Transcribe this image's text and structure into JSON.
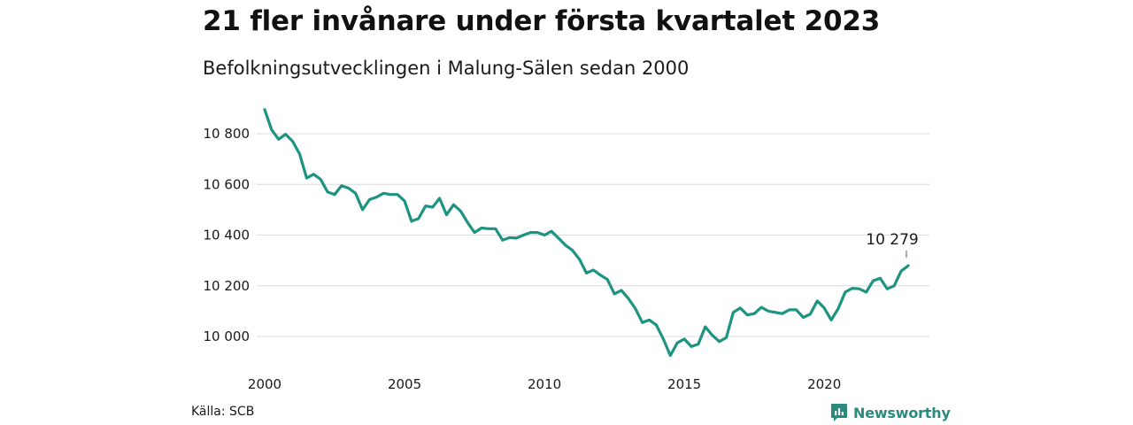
{
  "chart_data": {
    "type": "line",
    "title": "21 fler invånare under första kvartalet 2023",
    "subtitle": "Befolkningsutvecklingen i Malung-Sälen sedan 2000",
    "xlabel": "",
    "ylabel": "",
    "x_ticks": [
      2000,
      2005,
      2010,
      2015,
      2020
    ],
    "y_ticks": [
      10000,
      10200,
      10400,
      10600,
      10800
    ],
    "y_tick_labels": [
      "10 000",
      "10 200",
      "10 400",
      "10 600",
      "10 800"
    ],
    "x_tick_labels": [
      "2000",
      "2005",
      "2010",
      "2015",
      "2020"
    ],
    "xlim": [
      2000,
      2023.25
    ],
    "ylim": [
      9920,
      10920
    ],
    "grid": "horizontal",
    "line_color": "#1e9382",
    "last_value_label": "10 279",
    "series": [
      {
        "x": [
          2000.0,
          2000.25,
          2000.5,
          2000.75,
          2001.0,
          2001.25,
          2001.5,
          2001.75,
          2002.0,
          2002.25,
          2002.5,
          2002.75,
          2003.0,
          2003.25,
          2003.5,
          2003.75,
          2004.0,
          2004.25,
          2004.5,
          2004.75,
          2005.0,
          2005.25,
          2005.5,
          2005.75,
          2006.0,
          2006.25,
          2006.5,
          2006.75,
          2007.0,
          2007.25,
          2007.5,
          2007.75,
          2008.0,
          2008.25,
          2008.5,
          2008.75,
          2009.0,
          2009.25,
          2009.5,
          2009.75,
          2010.0,
          2010.25,
          2010.5,
          2010.75,
          2011.0,
          2011.25,
          2011.5,
          2011.75,
          2012.0,
          2012.25,
          2012.5,
          2012.75,
          2013.0,
          2013.25,
          2013.5,
          2013.75,
          2014.0,
          2014.25,
          2014.5,
          2014.75,
          2015.0,
          2015.25,
          2015.5,
          2015.75,
          2016.0,
          2016.25,
          2016.5,
          2016.75,
          2017.0,
          2017.25,
          2017.5,
          2017.75,
          2018.0,
          2018.25,
          2018.5,
          2018.75,
          2019.0,
          2019.25,
          2019.5,
          2019.75,
          2020.0,
          2020.25,
          2020.5,
          2020.75,
          2021.0,
          2021.25,
          2021.5,
          2021.75,
          2022.0,
          2022.25,
          2022.5,
          2022.75,
          2023.0
        ],
        "values": [
          10895,
          10815,
          10778,
          10798,
          10770,
          10720,
          10625,
          10640,
          10620,
          10570,
          10560,
          10595,
          10585,
          10565,
          10500,
          10540,
          10550,
          10565,
          10560,
          10560,
          10535,
          10455,
          10465,
          10515,
          10510,
          10545,
          10480,
          10520,
          10495,
          10450,
          10410,
          10428,
          10425,
          10425,
          10380,
          10390,
          10388,
          10400,
          10410,
          10410,
          10400,
          10415,
          10388,
          10360,
          10340,
          10305,
          10250,
          10262,
          10242,
          10225,
          10168,
          10182,
          10150,
          10110,
          10055,
          10065,
          10045,
          9990,
          9925,
          9975,
          9990,
          9960,
          9970,
          10038,
          10005,
          9980,
          9995,
          10095,
          10112,
          10085,
          10090,
          10115,
          10100,
          10095,
          10090,
          10105,
          10105,
          10075,
          10088,
          10140,
          10112,
          10065,
          10110,
          10175,
          10190,
          10188,
          10175,
          10220,
          10230,
          10188,
          10200,
          10258,
          10279
        ]
      }
    ]
  },
  "footer": {
    "source": "Källa: SCB",
    "brand_name": "Newsworthy"
  },
  "colors": {
    "line": "#1e9382",
    "grid": "#dcdcdc",
    "brand": "#2a8a7e"
  }
}
